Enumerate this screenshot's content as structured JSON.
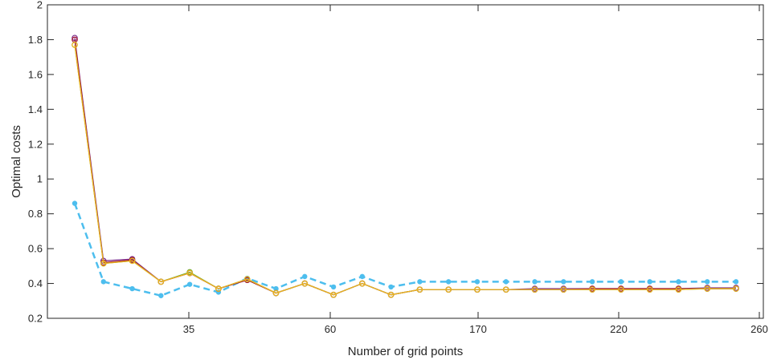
{
  "chart_data": {
    "type": "line",
    "title": "",
    "xlabel": "Number of grid points",
    "ylabel": "Optimal costs",
    "ylim": [
      0.2,
      2
    ],
    "yticks": [
      "0.2",
      "0.4",
      "0.6",
      "0.8",
      "1",
      "1.2",
      "1.4",
      "1.6",
      "1.8",
      "2"
    ],
    "xticks": [
      "35",
      "60",
      "170",
      "220",
      "260"
    ],
    "grid": false,
    "legend": "none",
    "series": [
      {
        "color": "#4DBEEE",
        "style": "dashed",
        "marker": "filled-circle",
        "values": [
          0.86,
          0.41,
          0.37,
          0.33,
          0.395,
          0.35,
          0.43,
          0.37,
          0.44,
          0.38,
          0.44,
          0.38,
          0.41,
          0.41,
          0.41,
          0.41,
          0.41,
          0.41,
          0.41,
          0.41,
          0.41,
          0.41,
          0.41,
          0.41
        ]
      },
      {
        "color": "#7E2F8E",
        "style": "solid",
        "marker": "open-circle",
        "values": [
          1.81,
          0.53,
          0.54,
          0.41,
          0.46,
          0.37,
          0.42,
          0.345,
          0.4,
          0.335,
          0.4,
          0.335,
          0.365,
          0.365,
          0.365,
          0.365,
          0.37,
          0.37,
          0.37,
          0.37,
          0.37,
          0.37,
          0.375,
          0.375
        ]
      },
      {
        "color": "#A2142F",
        "style": "solid",
        "marker": "open-circle",
        "values": [
          1.8,
          0.52,
          0.535,
          0.41,
          0.46,
          0.37,
          0.42,
          0.345,
          0.4,
          0.335,
          0.4,
          0.335,
          0.365,
          0.365,
          0.365,
          0.365,
          0.365,
          0.365,
          0.37,
          0.37,
          0.37,
          0.37,
          0.37,
          0.37
        ]
      },
      {
        "color": "#77AC30",
        "style": "solid",
        "marker": "open-circle",
        "values": [
          1.77,
          0.515,
          0.53,
          0.41,
          0.465,
          0.37,
          0.425,
          0.345,
          0.4,
          0.335,
          0.4,
          0.335,
          0.365,
          0.365,
          0.365,
          0.365,
          0.365,
          0.365,
          0.365,
          0.365,
          0.365,
          0.365,
          0.37,
          0.37
        ]
      },
      {
        "color": "#EDB120",
        "style": "solid",
        "marker": "open-circle",
        "values": [
          1.77,
          0.515,
          0.53,
          0.41,
          0.46,
          0.37,
          0.425,
          0.345,
          0.4,
          0.335,
          0.4,
          0.335,
          0.365,
          0.365,
          0.365,
          0.365,
          0.365,
          0.365,
          0.365,
          0.365,
          0.365,
          0.365,
          0.37,
          0.37
        ]
      }
    ]
  }
}
